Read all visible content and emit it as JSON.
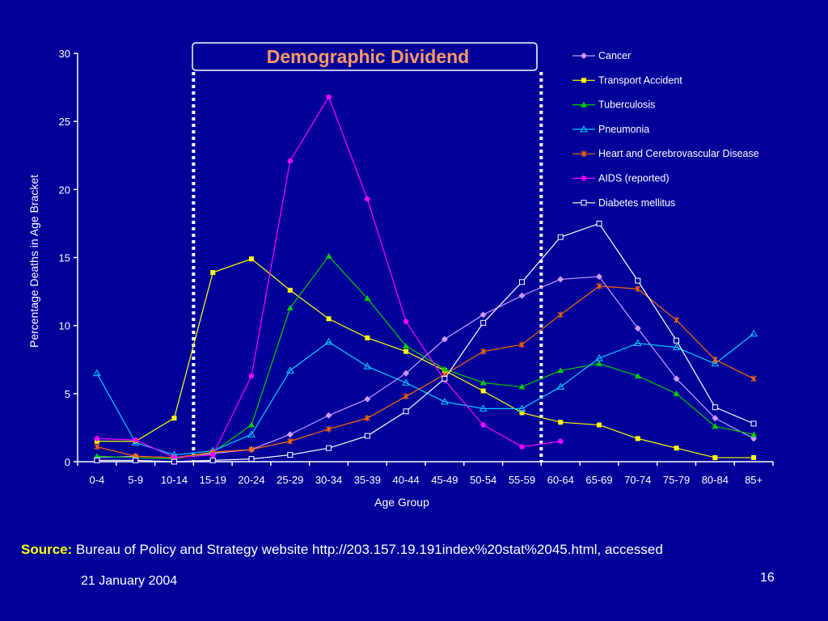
{
  "slide": {
    "source_label": "Source:",
    "source_text": "Bureau of Policy and Strategy website http://203.157.19.191index%20stat%2045.html, accessed",
    "date": "21 January 2004",
    "page_number": "16"
  },
  "chart_data": {
    "type": "line",
    "title": "Demographic Dividend",
    "xlabel": "Age Group",
    "ylabel": "Percentage Deaths in Age Bracket",
    "ylim": [
      0,
      30
    ],
    "yticks": [
      0,
      5,
      10,
      15,
      20,
      25,
      30
    ],
    "legend_position": "top-right",
    "highlight_range": [
      "15-19",
      "55-59"
    ],
    "categories": [
      "0-4",
      "5-9",
      "10-14",
      "15-19",
      "20-24",
      "25-29",
      "30-34",
      "35-39",
      "40-44",
      "45-49",
      "50-54",
      "55-59",
      "60-64",
      "65-69",
      "70-74",
      "75-79",
      "80-84",
      "85+"
    ],
    "series": [
      {
        "name": "Cancer",
        "color": "#cc99ff",
        "marker": "diamond",
        "values": [
          0.3,
          0.4,
          0.3,
          0.6,
          0.9,
          2.0,
          3.4,
          4.6,
          6.5,
          9.0,
          10.8,
          12.2,
          13.4,
          13.6,
          9.8,
          6.1,
          3.2,
          1.7
        ]
      },
      {
        "name": "Transport Accident",
        "color": "#ffff00",
        "marker": "square",
        "values": [
          1.5,
          1.5,
          3.2,
          13.9,
          14.9,
          12.6,
          10.5,
          9.1,
          8.1,
          6.7,
          5.2,
          3.6,
          2.9,
          2.7,
          1.7,
          1.0,
          0.3,
          0.3
        ]
      },
      {
        "name": "Tuberculosis",
        "color": "#00cc00",
        "marker": "triangle",
        "values": [
          0.4,
          0.3,
          0.2,
          0.7,
          2.7,
          11.3,
          15.1,
          12.0,
          8.5,
          6.8,
          5.8,
          5.5,
          6.7,
          7.2,
          6.3,
          5.0,
          2.6,
          2.0
        ]
      },
      {
        "name": "Pneumonia",
        "color": "#00ccff",
        "marker": "triangle-open",
        "values": [
          6.5,
          1.4,
          0.5,
          0.8,
          2.0,
          6.7,
          8.8,
          7.0,
          5.8,
          4.4,
          3.9,
          3.9,
          5.5,
          7.6,
          8.7,
          8.4,
          7.2,
          9.4
        ]
      },
      {
        "name": "Heart and Cerebrovascular Disease",
        "color": "#ff6600",
        "marker": "star",
        "values": [
          1.1,
          0.4,
          0.3,
          0.7,
          0.9,
          1.5,
          2.4,
          3.2,
          4.8,
          6.4,
          8.1,
          8.6,
          10.8,
          12.9,
          12.7,
          10.4,
          7.5,
          6.1
        ]
      },
      {
        "name": "AIDS (reported)",
        "color": "#ff00ff",
        "marker": "circle",
        "values": [
          1.7,
          1.6,
          0.3,
          0.5,
          6.3,
          22.1,
          26.8,
          19.3,
          10.3,
          6.0,
          2.7,
          1.1,
          1.5,
          null,
          null,
          null,
          null,
          null
        ]
      },
      {
        "name": "Diabetes mellitus",
        "color": "#ffffff",
        "marker": "square-open",
        "values": [
          0.1,
          0.1,
          0.0,
          0.1,
          0.2,
          0.5,
          1.0,
          1.9,
          3.7,
          6.1,
          10.2,
          13.2,
          16.5,
          17.5,
          13.3,
          8.9,
          4.0,
          2.8
        ]
      }
    ]
  }
}
